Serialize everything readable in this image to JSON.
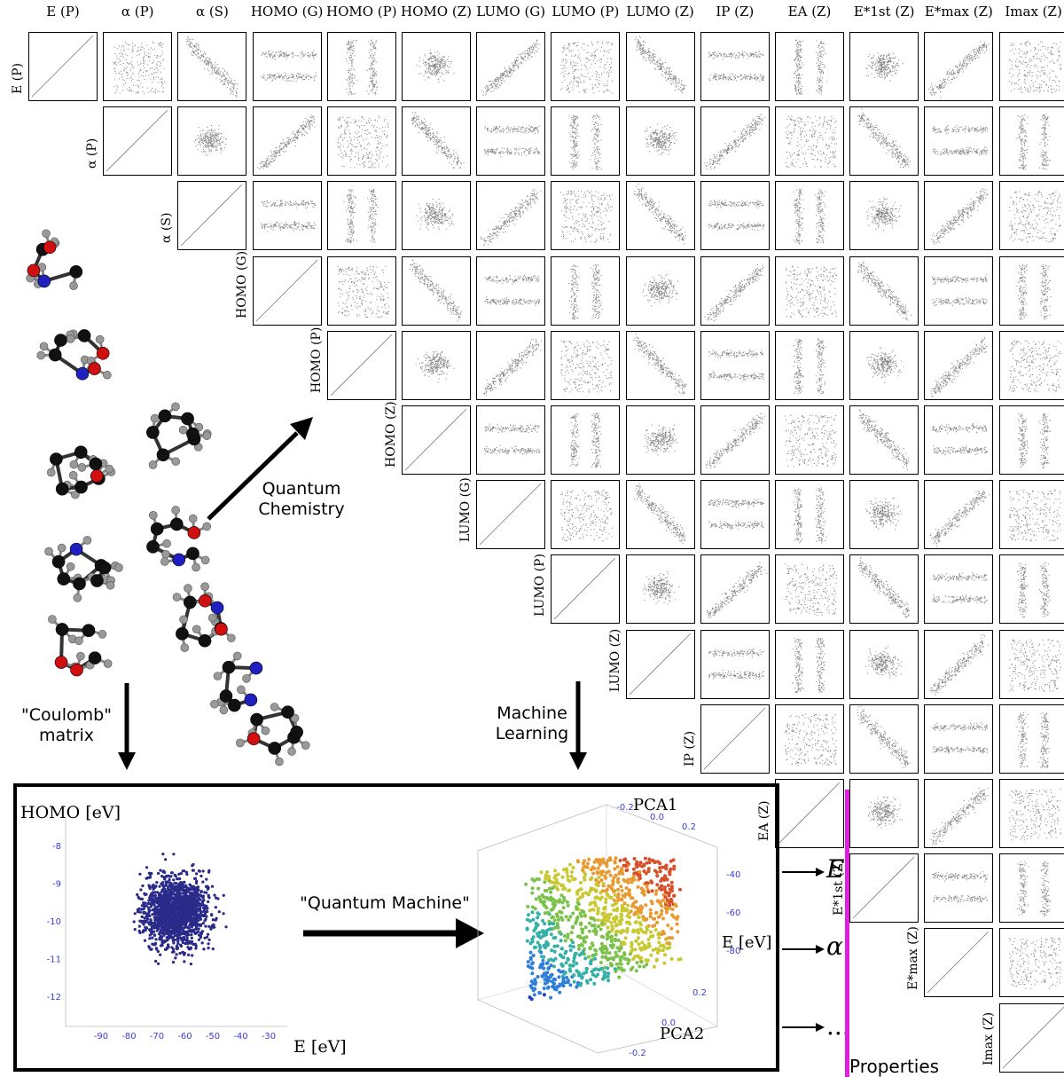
{
  "column_headers": [
    "E (P)",
    "α (P)",
    "α (S)",
    "HOMO (G)",
    "HOMO (P)",
    "HOMO (Z)",
    "LUMO (G)",
    "LUMO (P)",
    "LUMO (Z)",
    "IP (Z)",
    "EA (Z)",
    "E*1st (Z)",
    "E*max (Z)",
    "Imax (Z)"
  ],
  "row_labels": [
    "E (P)",
    "α (P)",
    "α (S)",
    "HOMO (G)",
    "HOMO (P)",
    "HOMO (Z)",
    "LUMO (G)",
    "LUMO (P)",
    "LUMO (Z)",
    "IP (Z)",
    "EA (Z)",
    "E*1st (Z)",
    "E*max (Z)",
    "Imax (Z)"
  ],
  "arrows": {
    "quantum_chemistry": "Quantum\nChemistry",
    "coulomb_matrix": "\"Coulomb\"\nmatrix",
    "machine_learning": "Machine\nLearning",
    "quantum_machine": "\"Quantum Machine\""
  },
  "scatter_left": {
    "ylabel": "HOMO [eV]",
    "xlabel": "E [eV]",
    "xticks": [
      "-90",
      "-80",
      "-70",
      "-60",
      "-50",
      "-40",
      "-30"
    ],
    "yticks": [
      "-8",
      "-9",
      "-10",
      "-11",
      "-12"
    ]
  },
  "scatter_3d": {
    "axis1": "PCA1",
    "axis2": "PCA2",
    "axis3": "E [eV]",
    "pca1_ticks": [
      "-0.2",
      "0.0",
      "0.2"
    ],
    "e_ticks": [
      "-40",
      "-60",
      "-80"
    ],
    "pca2_ticks": [
      "0.2",
      "0.0",
      "-0.2"
    ]
  },
  "outputs": [
    "E",
    "α",
    "..."
  ],
  "properties_label": "Properties",
  "colors": {
    "scatter": "#2a2a8a",
    "tick": "#3b3bd8",
    "accent": "#e020e0"
  }
}
